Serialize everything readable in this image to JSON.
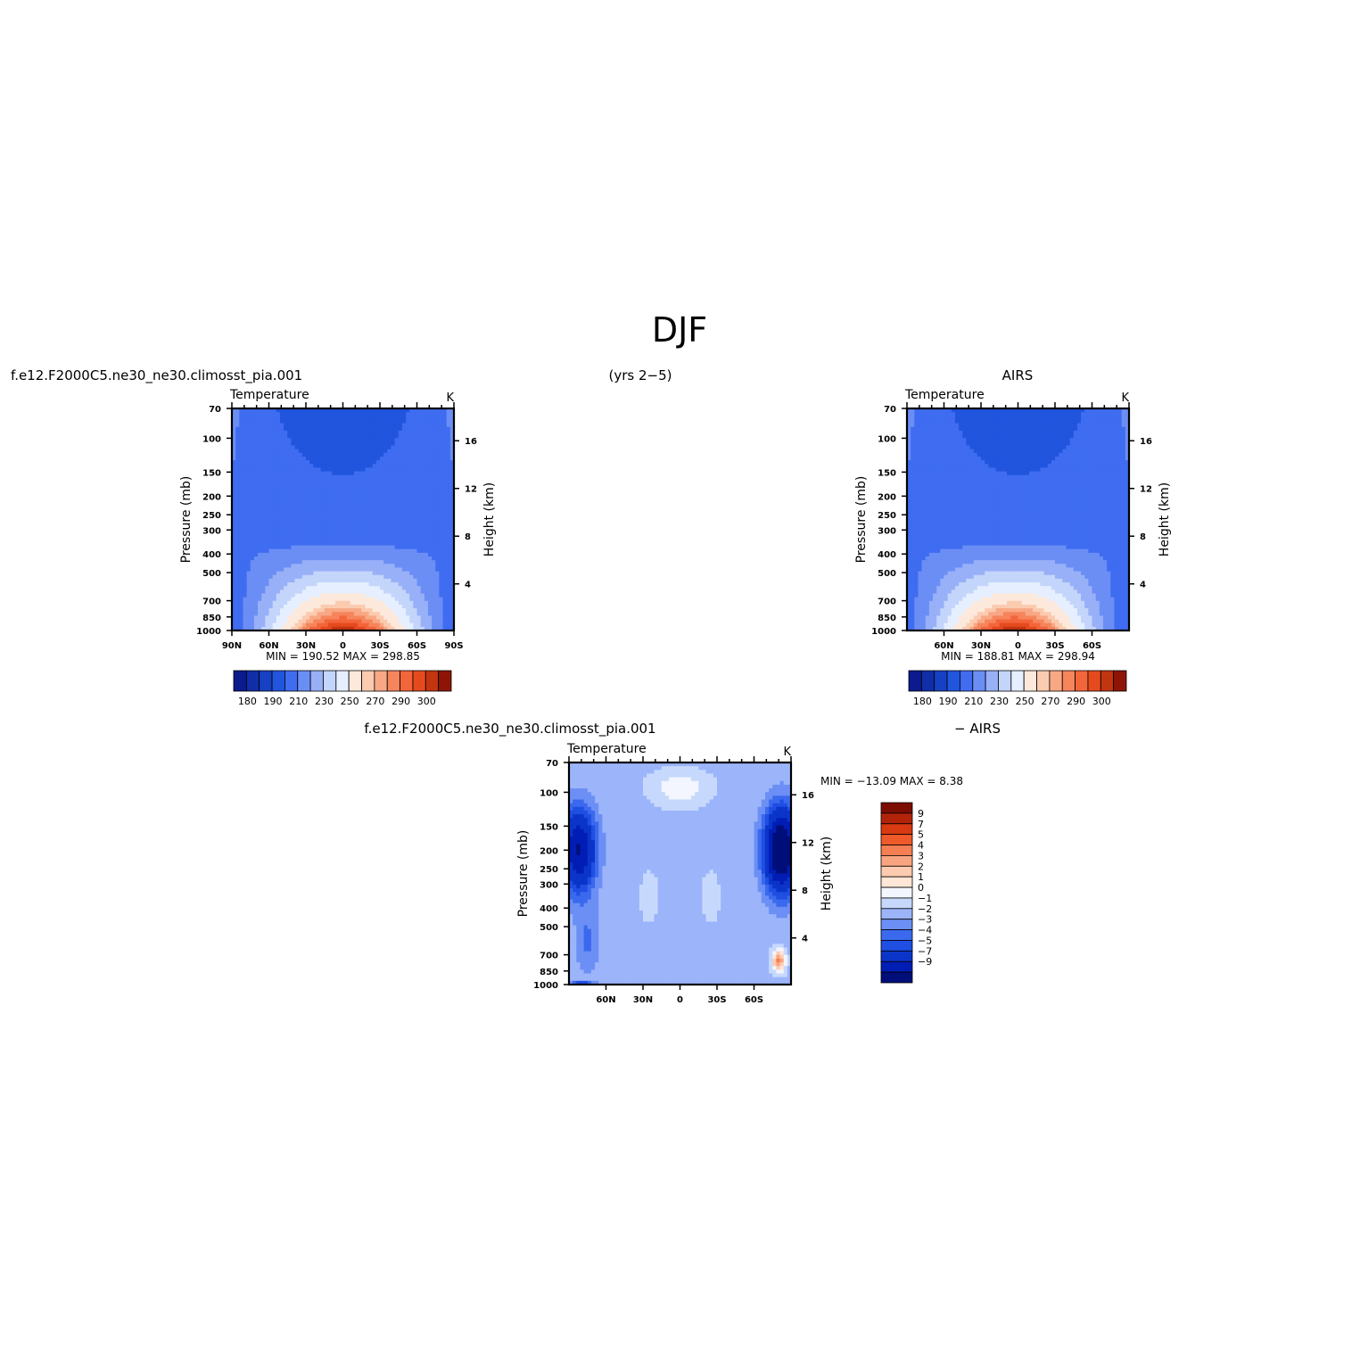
{
  "page": {
    "title": "DJF",
    "left_header": "f.e12.F2000C5.ne30_ne30.climosst_pia.001",
    "center_header": "(yrs 2−5)",
    "right_header": "AIRS",
    "diff_header_left": "f.e12.F2000C5.ne30_ne30.climosst_pia.001",
    "diff_header_right": "− AIRS"
  },
  "palette": {
    "abs_colors": [
      "#0b1a8c",
      "#102ea8",
      "#1741c4",
      "#2155de",
      "#3f6cf0",
      "#6b8ef5",
      "#98b0f8",
      "#c4d5fb",
      "#e6efff",
      "#fde9db",
      "#fbcbb0",
      "#f8a884",
      "#f6855c",
      "#f3653a",
      "#e54a1e",
      "#c3350f",
      "#8e1506"
    ],
    "diff_colors": [
      "#000e7a",
      "#001db4",
      "#0b35c9",
      "#1e4ee2",
      "#3b69ee",
      "#6c8ff5",
      "#9cb4fa",
      "#c6d9fd",
      "#f3f5ff",
      "#ffe6d6",
      "#fdcbb0",
      "#f9a481",
      "#f57f52",
      "#ef5a2b",
      "#d93a12",
      "#b2240a",
      "#7c0d03"
    ]
  },
  "chart_data": [
    {
      "type": "heatmap",
      "name": "model",
      "title": "Temperature",
      "unit": "K",
      "left_axis_label": "Pressure (mb)",
      "right_axis_label": "Height (km)",
      "x_ticks": [
        "90N",
        "60N",
        "30N",
        "0",
        "30S",
        "60S",
        "90S"
      ],
      "pressure_ticks": [
        70,
        100,
        150,
        200,
        250,
        300,
        400,
        500,
        700,
        850,
        1000
      ],
      "height_ticks": [
        16,
        12,
        8,
        4
      ],
      "stats_text": "MIN =  190.52   MAX =  298.85",
      "min": 190.52,
      "max": 298.85,
      "colorbar_labels": [
        "180",
        "190",
        "210",
        "230",
        "250",
        "270",
        "290",
        "300"
      ],
      "levels": [
        180,
        185,
        190,
        200,
        210,
        220,
        230,
        240,
        250,
        260,
        270,
        275,
        280,
        285,
        290,
        295,
        300
      ]
    },
    {
      "type": "heatmap",
      "name": "obs",
      "title": "Temperature",
      "unit": "K",
      "left_axis_label": "Pressure (mb)",
      "right_axis_label": "Height (km)",
      "x_ticks": [
        "60N",
        "30N",
        "0",
        "30S",
        "60S"
      ],
      "pressure_ticks": [
        70,
        100,
        150,
        200,
        250,
        300,
        400,
        500,
        700,
        850,
        1000
      ],
      "height_ticks": [
        16,
        12,
        8,
        4
      ],
      "stats_text": "MIN =  188.81   MAX =  298.94",
      "min": 188.81,
      "max": 298.94,
      "colorbar_labels": [
        "180",
        "190",
        "210",
        "230",
        "250",
        "270",
        "290",
        "300"
      ],
      "levels": [
        180,
        185,
        190,
        200,
        210,
        220,
        230,
        240,
        250,
        260,
        270,
        275,
        280,
        285,
        290,
        295,
        300
      ]
    },
    {
      "type": "heatmap",
      "name": "difference",
      "title": "Temperature",
      "unit": "K",
      "left_axis_label": "Pressure (mb)",
      "right_axis_label": "Height (km)",
      "x_ticks": [
        "60N",
        "30N",
        "0",
        "30S",
        "60S"
      ],
      "pressure_ticks": [
        70,
        100,
        150,
        200,
        250,
        300,
        400,
        500,
        700,
        850,
        1000
      ],
      "height_ticks": [
        16,
        12,
        8,
        4
      ],
      "stats_text": "MIN = −13.09   MAX =    8.38",
      "min": -13.09,
      "max": 8.38,
      "colorbar_labels": [
        "9",
        "7",
        "5",
        "4",
        "3",
        "2",
        "1",
        "0",
        "−1",
        "−2",
        "−3",
        "−4",
        "−5",
        "−7",
        "−9"
      ],
      "levels": [
        -9,
        -7,
        -5,
        -4,
        -3,
        -2,
        -1,
        0,
        1,
        2,
        3,
        4,
        5,
        7,
        9
      ]
    }
  ]
}
